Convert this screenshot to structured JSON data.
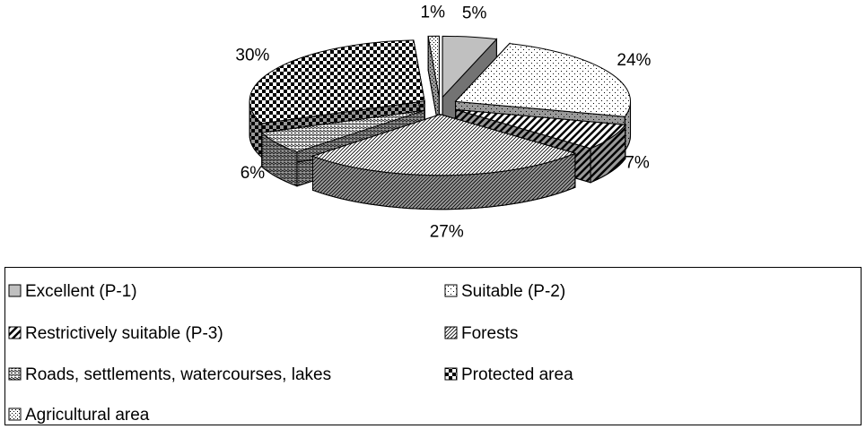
{
  "chart_data": {
    "type": "pie",
    "categories": [
      "Excellent (P-1)",
      "Suitable (P-2)",
      "Restrictively suitable (P-3)",
      "Forests",
      "Roads, settlements, watercourses, lakes",
      "Protected area",
      "Agricultural area"
    ],
    "values": [
      5,
      24,
      7,
      27,
      6,
      30,
      1
    ],
    "value_labels": [
      "5%",
      "24%",
      "7%",
      "27%",
      "6%",
      "30%",
      "1%"
    ],
    "colors": [
      "#c0c0c0",
      "#ffffff",
      "#ffffff",
      "#ffffff",
      "#ffffff",
      "#ffffff",
      "#ffffff"
    ],
    "legend": "bottom"
  }
}
